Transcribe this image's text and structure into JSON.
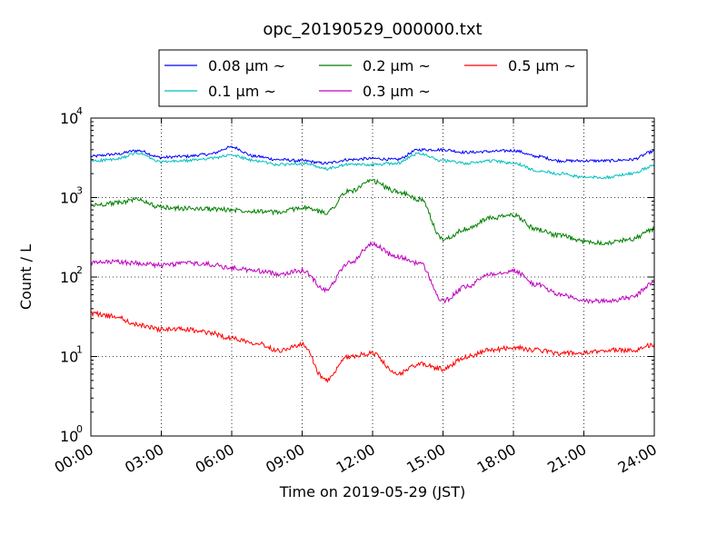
{
  "chart_data": {
    "type": "line",
    "title": "opc_20190529_000000.txt",
    "xlabel": "Time on 2019-05-29 (JST)",
    "ylabel": "Count / L",
    "yscale": "log",
    "ylim": [
      1,
      10000
    ],
    "xlim": [
      "00:00",
      "24:00"
    ],
    "grid": true,
    "legend_position": "top-center",
    "x_ticks": [
      "00:00",
      "03:00",
      "06:00",
      "09:00",
      "12:00",
      "15:00",
      "18:00",
      "21:00",
      "24:00"
    ],
    "y_ticks": [
      {
        "base": "10",
        "exp": "0",
        "value": 1
      },
      {
        "base": "10",
        "exp": "1",
        "value": 10
      },
      {
        "base": "10",
        "exp": "2",
        "value": 100
      },
      {
        "base": "10",
        "exp": "3",
        "value": 1000
      },
      {
        "base": "10",
        "exp": "4",
        "value": 10000
      }
    ],
    "x": [
      "00:00",
      "01:00",
      "02:00",
      "03:00",
      "04:00",
      "05:00",
      "06:00",
      "07:00",
      "08:00",
      "09:00",
      "10:00",
      "11:00",
      "12:00",
      "13:00",
      "14:00",
      "15:00",
      "16:00",
      "17:00",
      "18:00",
      "19:00",
      "20:00",
      "21:00",
      "22:00",
      "23:00",
      "24:00"
    ],
    "series": [
      {
        "name": "0.08 μm ~",
        "color": "#0000ff",
        "values": [
          3300,
          3500,
          3900,
          3200,
          3300,
          3500,
          4300,
          3300,
          3000,
          2900,
          2700,
          3000,
          3100,
          3000,
          4000,
          4000,
          3700,
          3800,
          3900,
          3300,
          2900,
          2900,
          2900,
          3000,
          3800
        ]
      },
      {
        "name": "0.1 μm ~",
        "color": "#00bfbf",
        "values": [
          2900,
          3000,
          3600,
          2800,
          2900,
          3100,
          3400,
          2900,
          2600,
          2700,
          2300,
          2600,
          2600,
          2700,
          3600,
          2900,
          2700,
          2900,
          2700,
          2200,
          2000,
          1800,
          1800,
          2000,
          2500
        ]
      },
      {
        "name": "0.2 μm ~",
        "color": "#008000",
        "values": [
          800,
          850,
          950,
          750,
          730,
          720,
          700,
          680,
          650,
          750,
          650,
          1200,
          1600,
          1200,
          950,
          300,
          400,
          550,
          600,
          400,
          330,
          280,
          270,
          300,
          400
        ]
      },
      {
        "name": "0.3 μm ~",
        "color": "#bf00bf",
        "values": [
          150,
          155,
          150,
          140,
          150,
          145,
          130,
          120,
          110,
          120,
          70,
          150,
          260,
          180,
          150,
          50,
          75,
          110,
          120,
          80,
          60,
          50,
          50,
          55,
          85
        ]
      },
      {
        "name": "0.5 μm ~",
        "color": "#ff0000",
        "values": [
          35,
          32,
          25,
          22,
          22,
          20,
          17,
          15,
          12,
          14,
          5,
          10,
          11,
          6,
          8,
          7,
          10,
          12,
          13,
          12,
          11,
          11,
          12,
          12,
          14
        ]
      }
    ]
  }
}
